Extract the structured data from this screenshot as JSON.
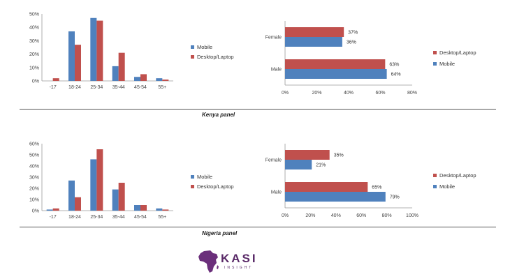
{
  "colors": {
    "mobile": "#4f81bd",
    "desktop": "#c0504d"
  },
  "chart_data": [
    {
      "id": "kenya-age",
      "panel": "Kenya",
      "type": "bar",
      "categories": [
        "-17",
        "18-24",
        "25-34",
        "35-44",
        "45-54",
        "55+"
      ],
      "series": [
        {
          "name": "Mobile",
          "values": [
            0,
            37,
            47,
            11,
            3,
            2
          ]
        },
        {
          "name": "Desktop/Laptop",
          "values": [
            2,
            27,
            45,
            21,
            5,
            1
          ]
        }
      ],
      "ylim": [
        0,
        50
      ],
      "yticks": [
        0,
        10,
        20,
        30,
        40,
        50
      ],
      "tick_suffix": "%",
      "legend": [
        "Mobile",
        "Desktop/Laptop"
      ]
    },
    {
      "id": "kenya-gender",
      "panel": "Kenya",
      "type": "bar-horizontal",
      "categories": [
        "Female",
        "Male"
      ],
      "series": [
        {
          "name": "Desktop/Laptop",
          "values": [
            37,
            63
          ]
        },
        {
          "name": "Mobile",
          "values": [
            36,
            64
          ]
        }
      ],
      "xlim": [
        0,
        80
      ],
      "xticks": [
        0,
        20,
        40,
        60,
        80
      ],
      "tick_suffix": "%",
      "data_labels": true,
      "legend": [
        "Desktop/Laptop",
        "Mobile"
      ]
    },
    {
      "id": "nigeria-age",
      "panel": "Nigeria",
      "type": "bar",
      "categories": [
        "-17",
        "18-24",
        "25-34",
        "35-44",
        "45-54",
        "55+"
      ],
      "series": [
        {
          "name": "Mobile",
          "values": [
            1,
            27,
            46,
            19,
            5,
            2
          ]
        },
        {
          "name": "Desktop/Laptop",
          "values": [
            2,
            12,
            55,
            25,
            5,
            1
          ]
        }
      ],
      "ylim": [
        0,
        60
      ],
      "yticks": [
        0,
        10,
        20,
        30,
        40,
        50,
        60
      ],
      "tick_suffix": "%",
      "legend": [
        "Mobile",
        "Desktop/Laptop"
      ]
    },
    {
      "id": "nigeria-gender",
      "panel": "Nigeria",
      "type": "bar-horizontal",
      "categories": [
        "Female",
        "Male"
      ],
      "series": [
        {
          "name": "Desktop/Laptop",
          "values": [
            35,
            65
          ]
        },
        {
          "name": "Mobile",
          "values": [
            21,
            79
          ]
        }
      ],
      "xlim": [
        0,
        100
      ],
      "xticks": [
        0,
        20,
        40,
        60,
        80,
        100
      ],
      "tick_suffix": "%",
      "data_labels": true,
      "legend": [
        "Desktop/Laptop",
        "Mobile"
      ]
    }
  ],
  "captions": {
    "kenya": "Kenya panel",
    "nigeria": "Nigeria panel"
  },
  "logo": {
    "name": "KASI",
    "tagline": "INSIGHT",
    "icon": "africa-map-icon"
  }
}
